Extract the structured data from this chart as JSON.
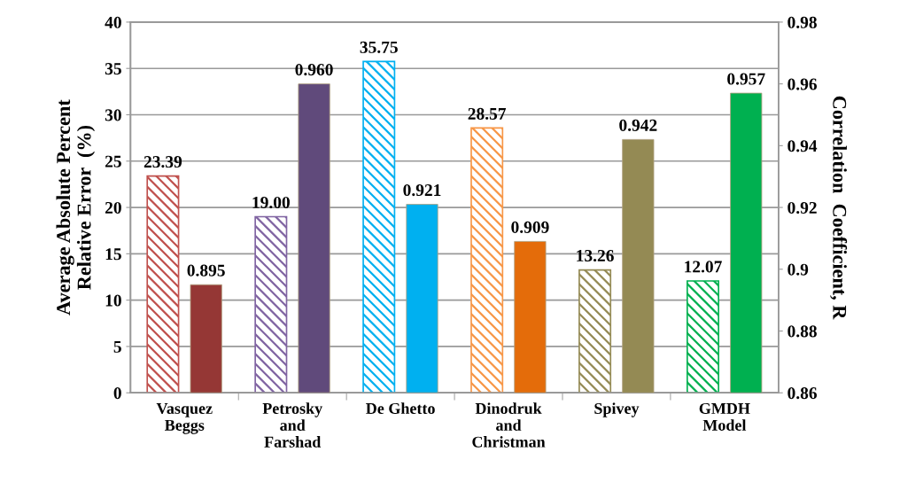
{
  "chart_data": {
    "type": "bar",
    "ylabel": "Average Absolute Percent\nRelative Error  (%)",
    "y2label": "Correlation  Coefficient, R",
    "categories": [
      "Vasquez\nBeggs",
      "Petrosky\nand\nFarshad",
      "De Ghetto",
      "Dinodruk\nand\nChristman",
      "Spivey",
      "GMDH\nModel"
    ],
    "series": [
      {
        "axis": "y",
        "colors": [
          "#c0504d",
          "#8064a2",
          "#00b0f0",
          "#f79646",
          "#948a54",
          "#00b050"
        ],
        "values": [
          23.39,
          19.0,
          35.75,
          28.57,
          13.26,
          12.07
        ],
        "value_labels": [
          "23.39",
          "19.00",
          "35.75",
          "28.57",
          "13.26",
          "12.07"
        ]
      },
      {
        "axis": "y2",
        "colors": [
          "#953735",
          "#604a7b",
          "#00b0f0",
          "#e46c0a",
          "#948a54",
          "#00b050"
        ],
        "values": [
          0.895,
          0.96,
          0.921,
          0.909,
          0.942,
          0.957
        ],
        "value_labels": [
          "0.895",
          "0.960",
          "0.921",
          "0.909",
          "0.942",
          "0.957"
        ]
      }
    ],
    "ylim": [
      0,
      40
    ],
    "yticks": [
      0,
      5,
      10,
      15,
      20,
      25,
      30,
      35,
      40
    ],
    "y2lim": [
      0.86,
      0.98
    ],
    "y2ticks": [
      0.86,
      0.88,
      0.9,
      0.92,
      0.94,
      0.96,
      0.98
    ],
    "grid": "y"
  }
}
